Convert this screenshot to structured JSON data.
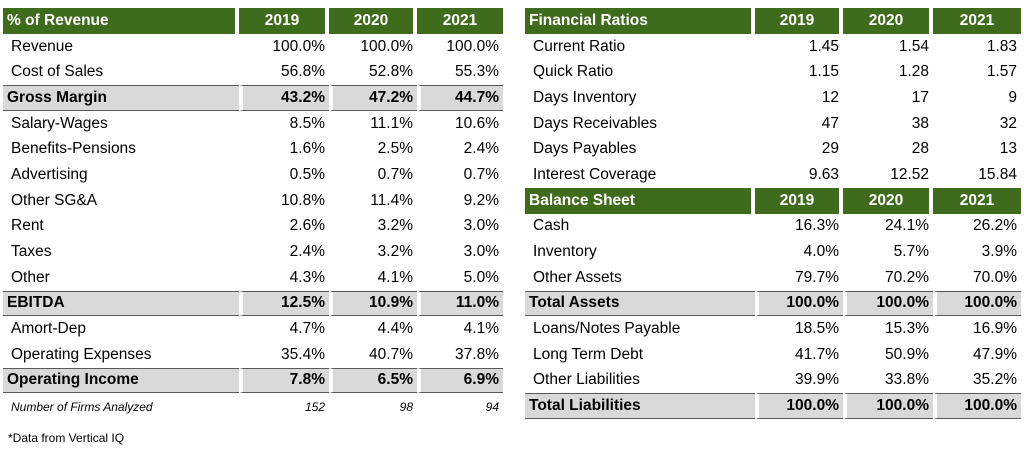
{
  "left_table": {
    "header": [
      "% of Revenue",
      "2019",
      "2020",
      "2021"
    ],
    "rows": [
      {
        "label": "Revenue",
        "values": [
          "100.0%",
          "100.0%",
          "100.0%"
        ],
        "bold": false
      },
      {
        "label": "Cost of Sales",
        "values": [
          "56.8%",
          "52.8%",
          "55.3%"
        ],
        "bold": false
      },
      {
        "label": "Gross Margin",
        "values": [
          "43.2%",
          "47.2%",
          "44.7%"
        ],
        "bold": true
      },
      {
        "label": "Salary-Wages",
        "values": [
          "8.5%",
          "11.1%",
          "10.6%"
        ],
        "bold": false
      },
      {
        "label": "Benefits-Pensions",
        "values": [
          "1.6%",
          "2.5%",
          "2.4%"
        ],
        "bold": false
      },
      {
        "label": "Advertising",
        "values": [
          "0.5%",
          "0.7%",
          "0.7%"
        ],
        "bold": false
      },
      {
        "label": "Other SG&A",
        "values": [
          "10.8%",
          "11.4%",
          "9.2%"
        ],
        "bold": false
      },
      {
        "label": "Rent",
        "values": [
          "2.6%",
          "3.2%",
          "3.0%"
        ],
        "bold": false
      },
      {
        "label": "Taxes",
        "values": [
          "2.4%",
          "3.2%",
          "3.0%"
        ],
        "bold": false
      },
      {
        "label": "Other",
        "values": [
          "4.3%",
          "4.1%",
          "5.0%"
        ],
        "bold": false
      },
      {
        "label": "EBITDA",
        "values": [
          "12.5%",
          "10.9%",
          "11.0%"
        ],
        "bold": true
      },
      {
        "label": "Amort-Dep",
        "values": [
          "4.7%",
          "4.4%",
          "4.1%"
        ],
        "bold": false
      },
      {
        "label": "Operating Expenses",
        "values": [
          "35.4%",
          "40.7%",
          "37.8%"
        ],
        "bold": false
      },
      {
        "label": "Operating Income",
        "values": [
          "7.8%",
          "6.5%",
          "6.9%"
        ],
        "bold": true
      }
    ],
    "footer": {
      "label": "Number of Firms Analyzed",
      "values": [
        "152",
        "98",
        "94"
      ]
    }
  },
  "right_table": {
    "sections": [
      {
        "header": [
          "Financial Ratios",
          "2019",
          "2020",
          "2021"
        ],
        "rows": [
          {
            "label": "Current Ratio",
            "values": [
              "1.45",
              "1.54",
              "1.83"
            ],
            "bold": false
          },
          {
            "label": "Quick Ratio",
            "values": [
              "1.15",
              "1.28",
              "1.57"
            ],
            "bold": false
          },
          {
            "label": "Days Inventory",
            "values": [
              "12",
              "17",
              "9"
            ],
            "bold": false
          },
          {
            "label": "Days Receivables",
            "values": [
              "47",
              "38",
              "32"
            ],
            "bold": false
          },
          {
            "label": "Days Payables",
            "values": [
              "29",
              "28",
              "13"
            ],
            "bold": false
          },
          {
            "label": "Interest Coverage",
            "values": [
              "9.63",
              "12.52",
              "15.84"
            ],
            "bold": false
          }
        ]
      },
      {
        "header": [
          "Balance Sheet",
          "2019",
          "2020",
          "2021"
        ],
        "rows": [
          {
            "label": "Cash",
            "values": [
              "16.3%",
              "24.1%",
              "26.2%"
            ],
            "bold": false
          },
          {
            "label": "Inventory",
            "values": [
              "4.0%",
              "5.7%",
              "3.9%"
            ],
            "bold": false
          },
          {
            "label": "Other Assets",
            "values": [
              "79.7%",
              "70.2%",
              "70.0%"
            ],
            "bold": false
          },
          {
            "label": "Total Assets",
            "values": [
              "100.0%",
              "100.0%",
              "100.0%"
            ],
            "bold": true
          },
          {
            "label": "Loans/Notes Payable",
            "values": [
              "18.5%",
              "15.3%",
              "16.9%"
            ],
            "bold": false
          },
          {
            "label": "Long Term Debt",
            "values": [
              "41.7%",
              "50.9%",
              "47.9%"
            ],
            "bold": false
          },
          {
            "label": "Other Liabilities",
            "values": [
              "39.9%",
              "33.8%",
              "35.2%"
            ],
            "bold": false
          },
          {
            "label": "Total Liabilities",
            "values": [
              "100.0%",
              "100.0%",
              "100.0%"
            ],
            "bold": true
          }
        ]
      }
    ]
  },
  "footnote": "*Data from Vertical IQ",
  "colors": {
    "header_bg": "#3f6b1c",
    "header_text": "#ffffff",
    "total_bg": "#d9d9d9"
  }
}
